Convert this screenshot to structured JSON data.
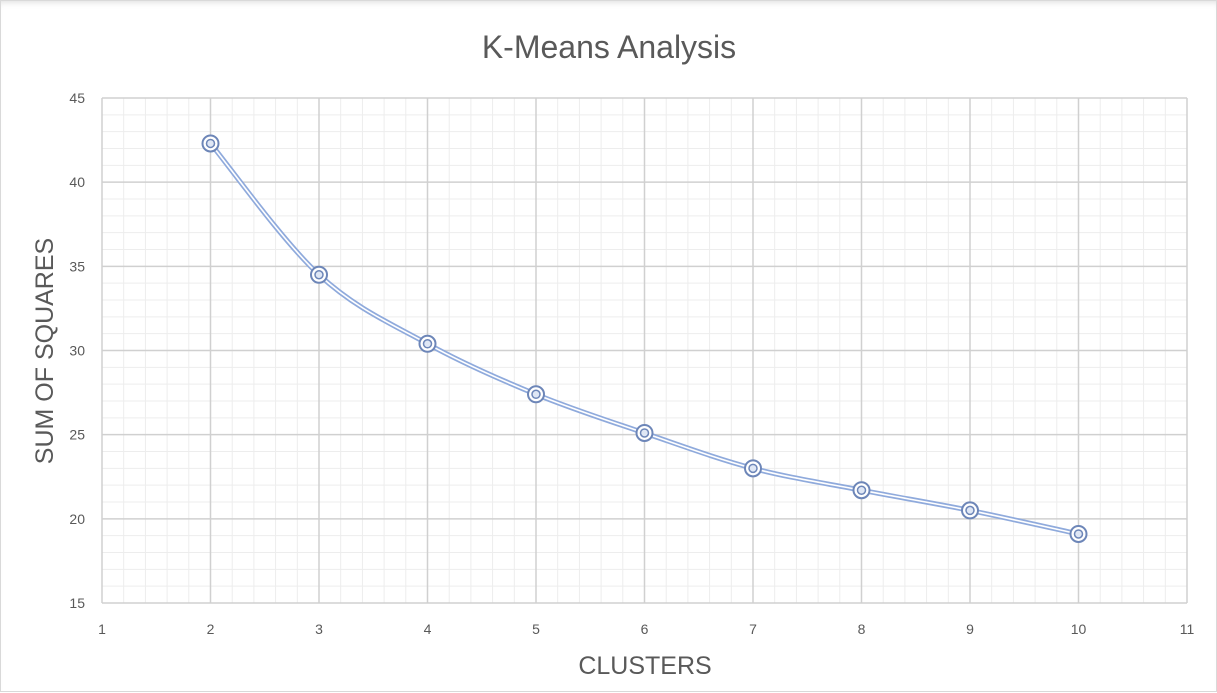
{
  "chart_data": {
    "type": "scatter",
    "title": "K-Means Analysis",
    "xlabel": "CLUSTERS",
    "ylabel": "SUM OF SQUARES",
    "xlim": [
      1,
      11
    ],
    "ylim": [
      15,
      45
    ],
    "x_ticks": [
      1,
      2,
      3,
      4,
      5,
      6,
      7,
      8,
      9,
      10,
      11
    ],
    "y_ticks": [
      15,
      20,
      25,
      30,
      35,
      40,
      45
    ],
    "grid": true,
    "smooth_line": true,
    "legend": "none",
    "series": [
      {
        "x": [
          2,
          3,
          4,
          5,
          6,
          7,
          8,
          9,
          10
        ],
        "y": [
          42.3,
          34.5,
          30.4,
          27.4,
          25.1,
          23.0,
          21.7,
          20.5,
          19.1
        ]
      }
    ],
    "colors": {
      "line": "#8faadc",
      "marker": "#6d86b8",
      "text": "#595959"
    }
  }
}
